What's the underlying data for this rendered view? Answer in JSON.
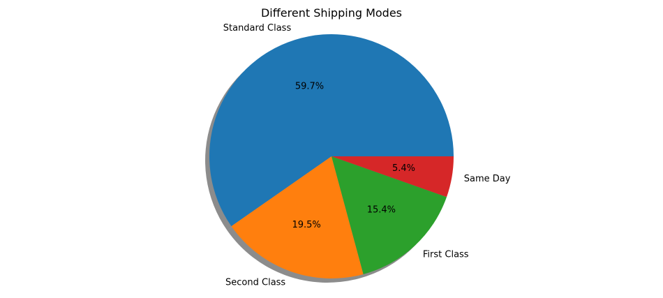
{
  "chart_data": {
    "type": "pie",
    "title": "Different Shipping Modes",
    "categories": [
      "Standard Class",
      "Second Class",
      "First Class",
      "Same Day"
    ],
    "values": [
      59.7,
      19.5,
      15.4,
      5.4
    ],
    "value_labels": [
      "59.7%",
      "19.5%",
      "15.4%",
      "5.4%"
    ],
    "colors": [
      "#1f77b4",
      "#ff7f0e",
      "#2ca02c",
      "#d62728"
    ],
    "start_angle_deg": 0,
    "direction": "counterclockwise",
    "shadow": true,
    "legend": false
  }
}
